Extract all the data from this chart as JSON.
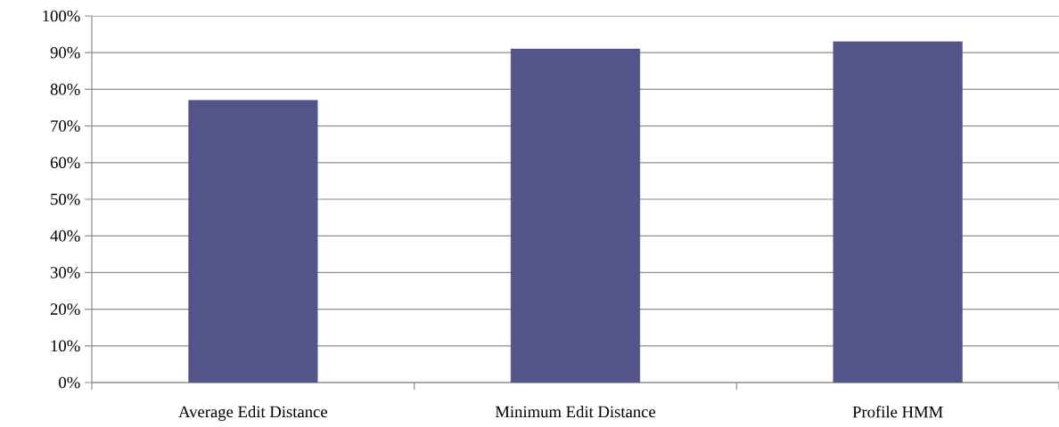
{
  "chart_data": {
    "type": "bar",
    "categories": [
      "Average Edit Distance",
      "Minimum Edit Distance",
      "Profile HMM"
    ],
    "values": [
      77,
      91,
      93
    ],
    "color": "#53548a",
    "ylim": [
      0,
      100
    ],
    "yticks": [
      {
        "value": 0,
        "label": "0%"
      },
      {
        "value": 10,
        "label": "10%"
      },
      {
        "value": 20,
        "label": "20%"
      },
      {
        "value": 30,
        "label": "30%"
      },
      {
        "value": 40,
        "label": "40%"
      },
      {
        "value": 50,
        "label": "50%"
      },
      {
        "value": 60,
        "label": "60%"
      },
      {
        "value": 70,
        "label": "70%"
      },
      {
        "value": 80,
        "label": "80%"
      },
      {
        "value": 90,
        "label": "90%"
      },
      {
        "value": 100,
        "label": "100%"
      }
    ],
    "grid": "y"
  }
}
